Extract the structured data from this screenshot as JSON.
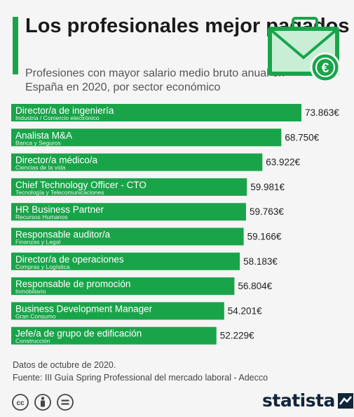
{
  "header": {
    "title": "Los profesionales mejor pagados",
    "subtitle": "Profesiones con mayor salario medio bruto anual en España en 2020, por sector económico"
  },
  "chart_data": {
    "type": "bar",
    "orientation": "horizontal",
    "categories": [
      "Director/a de ingeniería",
      "Analista M&A",
      "Director/a médico/a",
      "Chief Technology Officer - CTO",
      "HR Business Partner",
      "Responsable auditor/a",
      "Director/a de operaciones",
      "Responsable de promoción",
      "Business Development Manager",
      "Jefe/a de grupo de edificación"
    ],
    "sectors": [
      "Industria / Comercio electrónico",
      "Banca y Seguros",
      "Ciencias de la vida",
      "Tecnología y Telecomunicaciones",
      "Recursos Humanos",
      "Finanzas y Legal",
      "Compras y Logística",
      "Inmobiliario",
      "Gran Consumo",
      "Construcción"
    ],
    "values": [
      73863,
      68750,
      63922,
      59981,
      59763,
      59166,
      58183,
      56804,
      54201,
      52229
    ],
    "value_labels": [
      "73.863€",
      "68.750€",
      "63.922€",
      "59.981€",
      "59.763€",
      "59.166€",
      "58.183€",
      "56.804€",
      "54.201€",
      "52.229€"
    ],
    "xlim": [
      0,
      73863
    ],
    "grid": false,
    "bar_color": "#1aa44a"
  },
  "footer": {
    "note": "Datos de octubre de 2020.",
    "source": "Fuente: III Guía Spring Professional del mercado laboral - Adecco"
  },
  "brand": {
    "name": "statista"
  },
  "colors": {
    "accent": "#1aa44a",
    "background": "#f5f5f5",
    "brand": "#12263a"
  },
  "icons": {
    "header": "briefcase-euro-icon",
    "license": [
      "creative-commons-icon",
      "attribution-icon",
      "no-derivatives-icon"
    ]
  }
}
